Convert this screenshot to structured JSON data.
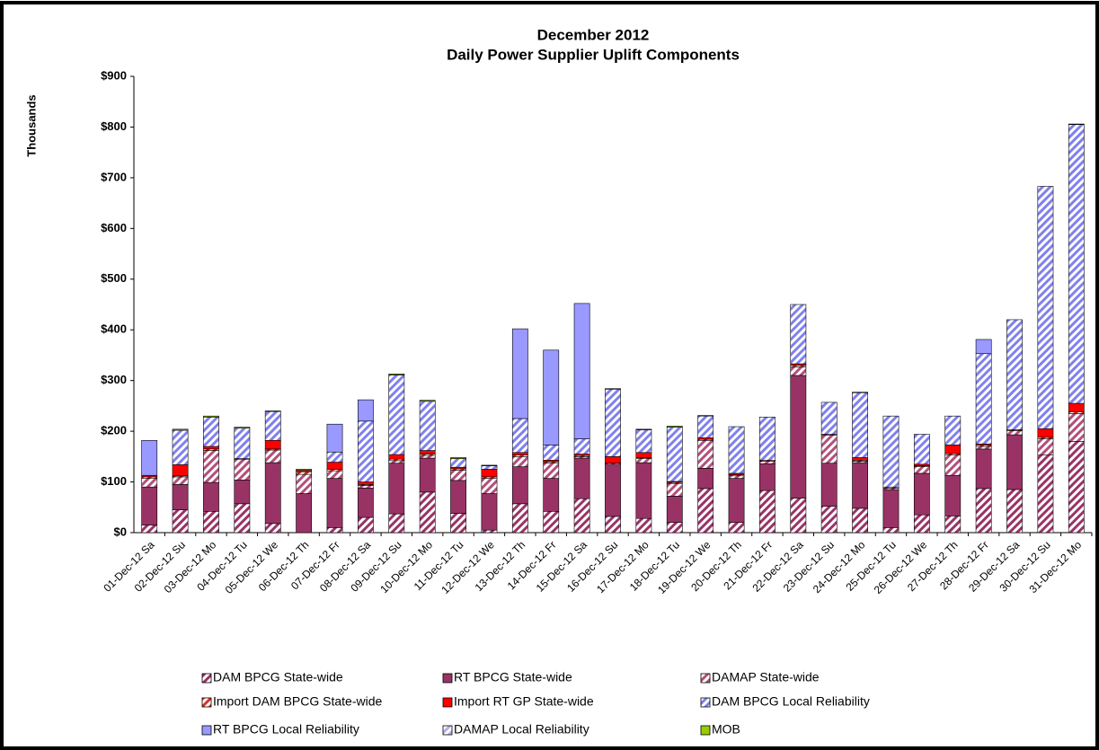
{
  "chart_data": {
    "type": "stacked_bar",
    "title": "December 2012",
    "subtitle": "Daily Power Supplier Uplift Components",
    "y_label": "Thousands",
    "categories": [
      "01-Dec-12 Sa",
      "02-Dec-12 Su",
      "03-Dec-12 Mo",
      "04-Dec-12 Tu",
      "05-Dec-12 We",
      "06-Dec-12 Th",
      "07-Dec-12 Fr",
      "08-Dec-12 Sa",
      "09-Dec-12 Su",
      "10-Dec-12 Mo",
      "11-Dec-12 Tu",
      "12-Dec-12 We",
      "13-Dec-12 Th",
      "14-Dec-12 Fr",
      "15-Dec-12 Sa",
      "16-Dec-12 Su",
      "17-Dec-12 Mo",
      "18-Dec-12 Tu",
      "19-Dec-12 We",
      "20-Dec-12 Th",
      "21-Dec-12 Fr",
      "22-Dec-12 Sa",
      "23-Dec-12 Su",
      "24-Dec-12 Mo",
      "25-Dec-12 Tu",
      "26-Dec-12 We",
      "27-Dec-12 Th",
      "28-Dec-12 Fr",
      "29-Dec-12 Sa",
      "30-Dec-12 Su",
      "31-Dec-12 Mo"
    ],
    "series": [
      {
        "name": "DAM BPCG State-wide",
        "color": "#993366",
        "hatched": true,
        "values": [
          15,
          45,
          42,
          57,
          18,
          0,
          10,
          30,
          37,
          80,
          38,
          5,
          57,
          42,
          67,
          32,
          28,
          20,
          87,
          20,
          83,
          68,
          52,
          48,
          10,
          35,
          33,
          87,
          85,
          153,
          180
        ]
      },
      {
        "name": "RT BPCG State-wide",
        "color": "#993366",
        "hatched": false,
        "values": [
          75,
          50,
          57,
          47,
          120,
          77,
          97,
          58,
          100,
          67,
          65,
          72,
          73,
          65,
          80,
          103,
          110,
          52,
          40,
          87,
          53,
          242,
          85,
          90,
          75,
          82,
          80,
          78,
          108,
          0,
          0
        ]
      },
      {
        "name": "DAMAP State-wide",
        "color": "#b3507a",
        "hatched": true,
        "values": [
          17,
          15,
          63,
          40,
          25,
          38,
          15,
          5,
          5,
          5,
          20,
          30,
          20,
          30,
          3,
          0,
          8,
          25,
          55,
          5,
          5,
          17,
          55,
          3,
          3,
          13,
          40,
          5,
          8,
          32,
          55
        ]
      },
      {
        "name": "Import DAM BPCG State-wide",
        "color": "#e03020",
        "hatched": true,
        "values": [
          3,
          2,
          3,
          2,
          2,
          5,
          3,
          2,
          3,
          3,
          3,
          3,
          3,
          3,
          2,
          2,
          2,
          2,
          2,
          2,
          2,
          3,
          2,
          2,
          2,
          2,
          3,
          3,
          2,
          3,
          3
        ]
      },
      {
        "name": "Import RT GP State-wide",
        "color": "#ff0000",
        "hatched": false,
        "values": [
          3,
          22,
          5,
          0,
          17,
          3,
          14,
          5,
          9,
          7,
          3,
          15,
          5,
          3,
          3,
          13,
          10,
          2,
          3,
          3,
          0,
          3,
          0,
          5,
          0,
          3,
          17,
          2,
          0,
          17,
          17
        ]
      },
      {
        "name": "DAM BPCG Local Reliability",
        "color": "#8080ee",
        "hatched": true,
        "values": [
          0,
          68,
          58,
          60,
          57,
          0,
          20,
          120,
          157,
          97,
          17,
          7,
          67,
          30,
          30,
          133,
          45,
          107,
          43,
          92,
          85,
          117,
          63,
          128,
          140,
          59,
          57,
          178,
          217,
          478,
          550
        ]
      },
      {
        "name": "RT BPCG Local Reliability",
        "color": "#9999ff",
        "hatched": false,
        "values": [
          69,
          0,
          0,
          0,
          0,
          0,
          55,
          42,
          0,
          0,
          0,
          0,
          177,
          187,
          267,
          0,
          0,
          0,
          0,
          0,
          0,
          0,
          0,
          0,
          0,
          0,
          0,
          28,
          0,
          0,
          0
        ]
      },
      {
        "name": "DAMAP Local Reliability",
        "color": "#b0b0e8",
        "hatched": true,
        "values": [
          0,
          0,
          0,
          0,
          0,
          0,
          0,
          0,
          0,
          0,
          0,
          0,
          0,
          0,
          0,
          0,
          0,
          0,
          0,
          0,
          0,
          0,
          0,
          0,
          0,
          0,
          0,
          0,
          0,
          0,
          0
        ]
      },
      {
        "name": "MOB",
        "color": "#99cc00",
        "hatched": false,
        "values": [
          0,
          2,
          2,
          2,
          1,
          2,
          0,
          0,
          2,
          2,
          2,
          1,
          0,
          0,
          0,
          1,
          1,
          2,
          1,
          0,
          0,
          0,
          0,
          1,
          0,
          0,
          0,
          0,
          0,
          0,
          1
        ]
      }
    ],
    "ylim": [
      0,
      900
    ],
    "yticks": [
      {
        "value": 0,
        "label": "$0"
      },
      {
        "value": 100,
        "label": "$100"
      },
      {
        "value": 200,
        "label": "$200"
      },
      {
        "value": 300,
        "label": "$300"
      },
      {
        "value": 400,
        "label": "$400"
      },
      {
        "value": 500,
        "label": "$500"
      },
      {
        "value": 600,
        "label": "$600"
      },
      {
        "value": 700,
        "label": "$700"
      },
      {
        "value": 800,
        "label": "$800"
      },
      {
        "value": 900,
        "label": "$900"
      }
    ],
    "grid": false,
    "legend": "bottom"
  }
}
